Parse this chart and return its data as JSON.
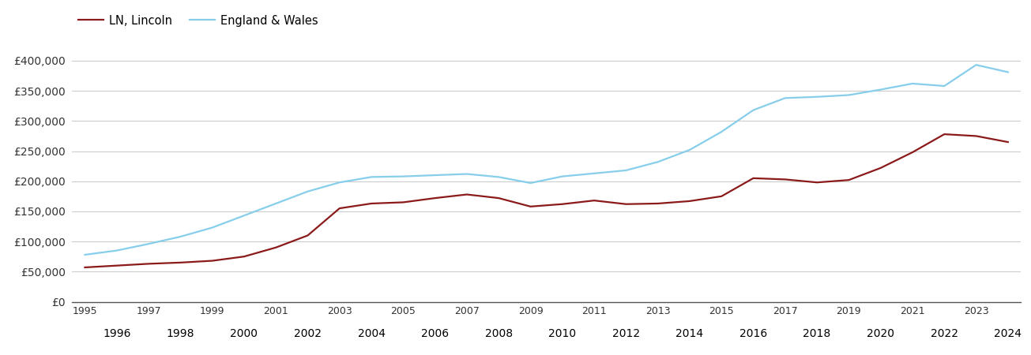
{
  "lincoln_years": [
    1995,
    1996,
    1997,
    1998,
    1999,
    2000,
    2001,
    2002,
    2003,
    2004,
    2005,
    2006,
    2007,
    2008,
    2009,
    2010,
    2011,
    2012,
    2013,
    2014,
    2015,
    2016,
    2017,
    2018,
    2019,
    2020,
    2021,
    2022,
    2023,
    2024
  ],
  "lincoln_values": [
    57000,
    60000,
    63000,
    65000,
    68000,
    75000,
    90000,
    110000,
    155000,
    163000,
    165000,
    172000,
    178000,
    172000,
    158000,
    162000,
    168000,
    162000,
    163000,
    167000,
    175000,
    205000,
    203000,
    198000,
    202000,
    222000,
    248000,
    278000,
    275000,
    265000
  ],
  "ew_years": [
    1995,
    1996,
    1997,
    1998,
    1999,
    2000,
    2001,
    2002,
    2003,
    2004,
    2005,
    2006,
    2007,
    2008,
    2009,
    2010,
    2011,
    2012,
    2013,
    2014,
    2015,
    2016,
    2017,
    2018,
    2019,
    2020,
    2021,
    2022,
    2023,
    2024
  ],
  "ew_values": [
    78000,
    85000,
    96000,
    108000,
    123000,
    143000,
    163000,
    183000,
    198000,
    207000,
    208000,
    210000,
    212000,
    207000,
    197000,
    208000,
    213000,
    218000,
    232000,
    252000,
    282000,
    318000,
    338000,
    340000,
    343000,
    352000,
    362000,
    358000,
    393000,
    381000
  ],
  "lincoln_color": "#8B1A1A",
  "ew_color": "#87CEEB",
  "lincoln_label": "LN, Lincoln",
  "ew_label": "England & Wales",
  "ylim": [
    0,
    430000
  ],
  "yticks": [
    0,
    50000,
    100000,
    150000,
    200000,
    250000,
    300000,
    350000,
    400000
  ],
  "ytick_labels": [
    "£0",
    "£50,000",
    "£100,000",
    "£150,000",
    "£200,000",
    "£250,000",
    "£300,000",
    "£350,000",
    "£400,000"
  ],
  "xtick_odd": [
    1995,
    1997,
    1999,
    2001,
    2003,
    2005,
    2007,
    2009,
    2011,
    2013,
    2015,
    2017,
    2019,
    2021,
    2023
  ],
  "xtick_even": [
    1996,
    1998,
    2000,
    2002,
    2004,
    2006,
    2008,
    2010,
    2012,
    2014,
    2016,
    2018,
    2020,
    2022,
    2024
  ],
  "background_color": "#ffffff",
  "grid_color": "#cccccc",
  "line_width": 1.6,
  "xlim_left": 1994.6,
  "xlim_right": 2024.4
}
